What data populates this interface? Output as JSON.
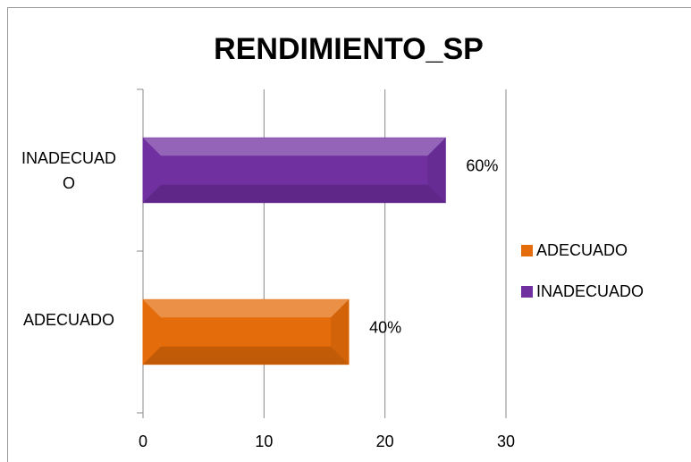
{
  "chart_data": {
    "type": "barh",
    "title": "RENDIMIENTO_SP",
    "categories": [
      "ADECUADO",
      "INADECUADO"
    ],
    "series": [
      {
        "name": "ADECUADO",
        "color": "#e46c0a"
      },
      {
        "name": "INADECUADO",
        "color": "#7030a0"
      }
    ],
    "values": [
      17,
      25
    ],
    "value_labels": [
      "40%",
      "60%"
    ],
    "xlim": [
      0,
      30
    ],
    "xticks": [
      0,
      10,
      20,
      30
    ],
    "grid": true,
    "legend": "right"
  }
}
